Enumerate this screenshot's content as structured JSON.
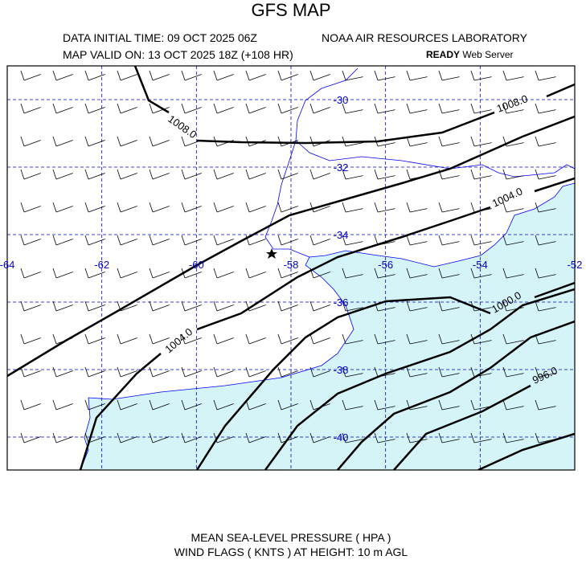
{
  "header": {
    "title": "GFS MAP",
    "initial_time": "DATA INITIAL TIME: 09 OCT 2025 06Z",
    "lab": "NOAA AIR RESOURCES LABORATORY",
    "valid_time": "MAP VALID ON: 13 OCT 2025 18Z (+108 HR)",
    "server_bold": "READY",
    "server": "Web Server"
  },
  "map": {
    "lon_ticks": [
      -64,
      -62,
      -60,
      -58,
      -56,
      -54,
      -52
    ],
    "lat_ticks": [
      -30,
      -32,
      -34,
      -36,
      -38,
      -40
    ],
    "isobar_labels": [
      "1008.0",
      "1008.0",
      "1004.0",
      "1004.0",
      "1000.0",
      "996.0"
    ]
  },
  "footer": {
    "line1": "MEAN SEA-LEVEL PRESSURE ( HPA  )",
    "line2": "WIND FLAGS ( KNTS ) AT HEIGHT: 10 m AGL"
  }
}
